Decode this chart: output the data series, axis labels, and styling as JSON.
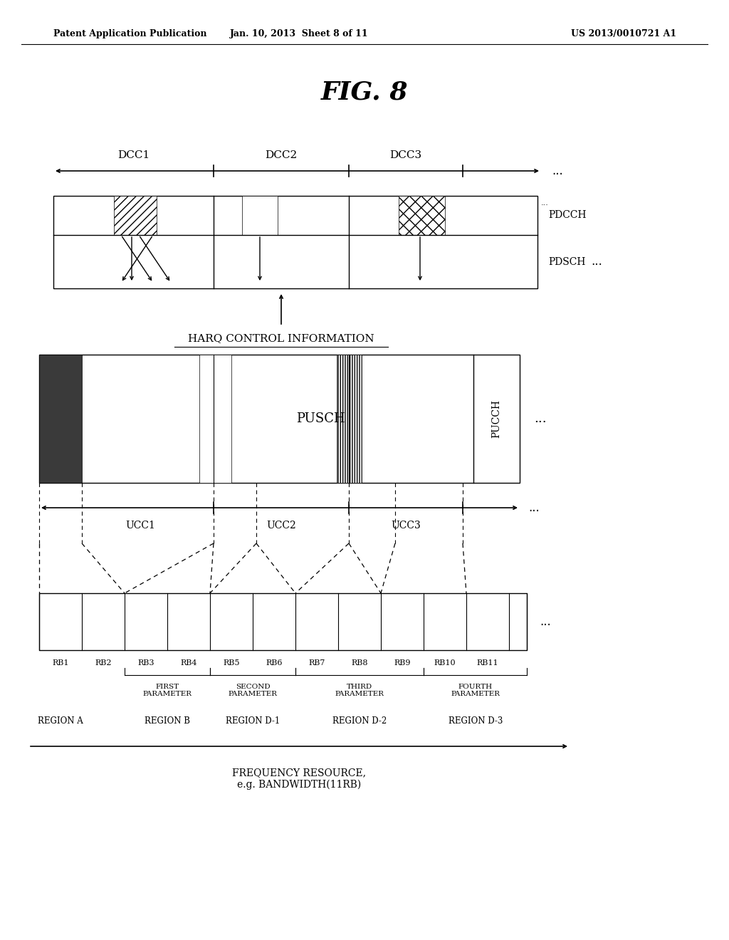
{
  "title": "FIG. 8",
  "header_left": "Patent Application Publication",
  "header_mid": "Jan. 10, 2013  Sheet 8 of 11",
  "header_right": "US 2013/0010721 A1",
  "bg_color": "#ffffff",
  "text_color": "#000000",
  "dcc_labels": [
    "DCC1",
    "DCC2",
    "DCC3"
  ],
  "pdcch_label": "PDCCH",
  "pdsch_label": "PDSCH",
  "pusch_label": "PUSCH",
  "pucch_label": "PUCCH",
  "harq_label": "HARQ CONTROL INFORMATION",
  "ucc_labels": [
    "UCC1",
    "UCC2",
    "UCC3"
  ],
  "rb_labels": [
    "RB1",
    "RB2",
    "RB3",
    "RB4",
    "RB5",
    "RB6",
    "RB7",
    "RB8",
    "RB9",
    "RB10",
    "RB11"
  ],
  "param_labels": [
    "FIRST\nPARAMETER",
    "SECOND\nPARAMETER",
    "THIRD\nPARAMETER",
    "FOURTH\nPARAMETER"
  ],
  "region_labels": [
    "REGION A",
    "REGION B",
    "REGION D-1",
    "REGION D-2",
    "REGION D-3"
  ],
  "freq_label": "FREQUENCY RESOURCE,\ne.g. BANDWIDTH(11RB)"
}
